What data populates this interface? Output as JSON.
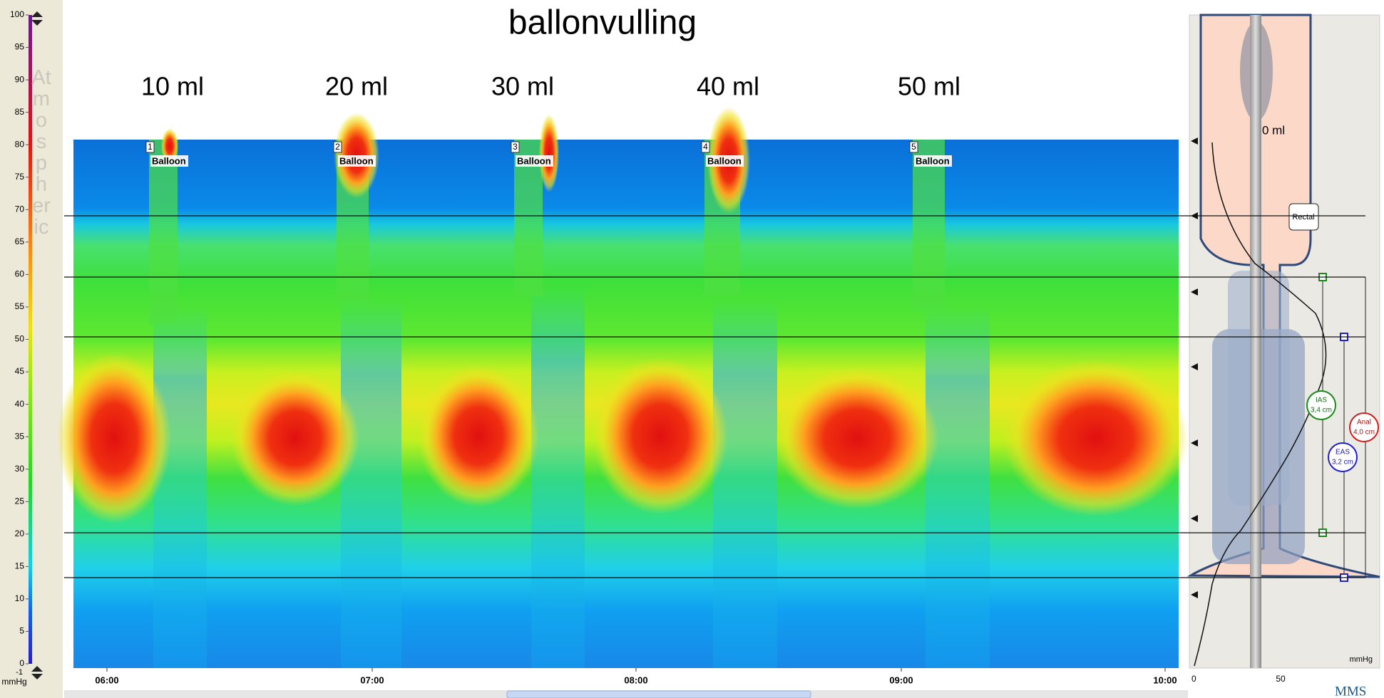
{
  "title": "ballonvulling",
  "volumes": [
    "10 ml",
    "20 ml",
    "30 ml",
    "40 ml",
    "50 ml"
  ],
  "colorbar": {
    "unit": "mmHg",
    "reference": "Atmospheric",
    "ticks": [
      100,
      95,
      90,
      85,
      80,
      75,
      70,
      65,
      60,
      55,
      50,
      45,
      40,
      35,
      30,
      25,
      20,
      15,
      10,
      5,
      0
    ],
    "bottom_label": "-1"
  },
  "markers": [
    {
      "number": "1",
      "label": "Balloon"
    },
    {
      "number": "2",
      "label": "Balloon"
    },
    {
      "number": "3",
      "label": "Balloon"
    },
    {
      "number": "4",
      "label": "Balloon"
    },
    {
      "number": "5",
      "label": "Balloon"
    }
  ],
  "time_axis": [
    "06:00",
    "07:00",
    "08:00",
    "09:00",
    "10:00"
  ],
  "profile": {
    "volume": "0 ml",
    "rectal": "Rectal",
    "ias": {
      "name": "IAS",
      "length": "3,4 cm"
    },
    "eas": {
      "name": "EAS",
      "length": "3,2 cm"
    },
    "anal": {
      "name": "Anal",
      "length": "4,0 cm"
    },
    "axis_ticks": [
      "0",
      "50"
    ],
    "unit": "mmHg"
  },
  "logo": "MMS"
}
